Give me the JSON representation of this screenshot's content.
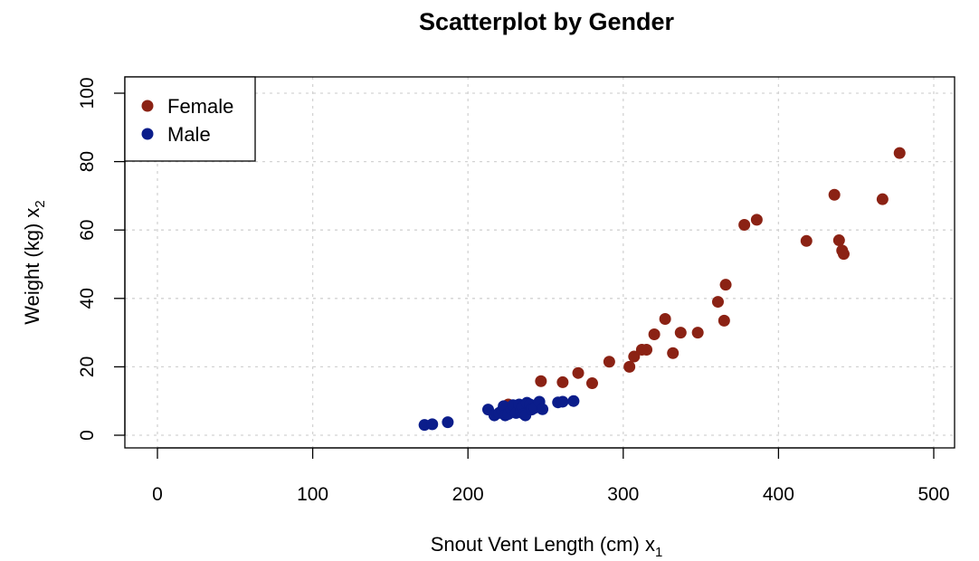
{
  "chart_data": {
    "type": "scatter",
    "title": "Scatterplot by Gender",
    "xlabel": "Snout Vent Length (cm) x",
    "xlabel_sub": "1",
    "ylabel": "Weight (kg) x",
    "ylabel_sub": "2",
    "xlim": [
      0,
      500
    ],
    "ylim": [
      0,
      100
    ],
    "xticks": [
      0,
      100,
      200,
      300,
      400,
      500
    ],
    "yticks": [
      0,
      20,
      40,
      60,
      80,
      100
    ],
    "grid": true,
    "legend_position": "top-left",
    "series": [
      {
        "name": "Female",
        "color": "#8B2214",
        "points": [
          [
            226,
            9
          ],
          [
            233,
            8
          ],
          [
            247,
            15.8
          ],
          [
            261,
            15.5
          ],
          [
            271,
            18.2
          ],
          [
            280,
            15.2
          ],
          [
            291,
            21.5
          ],
          [
            304,
            20
          ],
          [
            307,
            23
          ],
          [
            312,
            25
          ],
          [
            315,
            25
          ],
          [
            320,
            29.5
          ],
          [
            327,
            34
          ],
          [
            332,
            24
          ],
          [
            337,
            30
          ],
          [
            348,
            30
          ],
          [
            361,
            39
          ],
          [
            365,
            33.5
          ],
          [
            366,
            44
          ],
          [
            378,
            61.5
          ],
          [
            386,
            63
          ],
          [
            418,
            56.8
          ],
          [
            436,
            70.3
          ],
          [
            439,
            57
          ],
          [
            441,
            54
          ],
          [
            442,
            53
          ],
          [
            467,
            69
          ],
          [
            478,
            82.5
          ]
        ]
      },
      {
        "name": "Male",
        "color": "#0B1D8B",
        "points": [
          [
            172,
            3
          ],
          [
            177,
            3.2
          ],
          [
            187,
            3.8
          ],
          [
            213,
            7.5
          ],
          [
            217,
            5.8
          ],
          [
            220,
            6.5
          ],
          [
            222,
            7.2
          ],
          [
            223,
            8.5
          ],
          [
            224,
            5.8
          ],
          [
            226,
            6.2
          ],
          [
            228,
            7.5
          ],
          [
            229,
            8.8
          ],
          [
            231,
            6.5
          ],
          [
            233,
            9
          ],
          [
            234,
            7
          ],
          [
            235,
            8.3
          ],
          [
            236,
            6.2
          ],
          [
            237,
            5.8
          ],
          [
            238,
            9.5
          ],
          [
            240,
            9
          ],
          [
            241,
            7.5
          ],
          [
            243,
            8
          ],
          [
            246,
            9.8
          ],
          [
            248,
            7.6
          ],
          [
            258,
            9.6
          ],
          [
            261,
            9.8
          ],
          [
            268,
            10
          ]
        ]
      }
    ]
  }
}
